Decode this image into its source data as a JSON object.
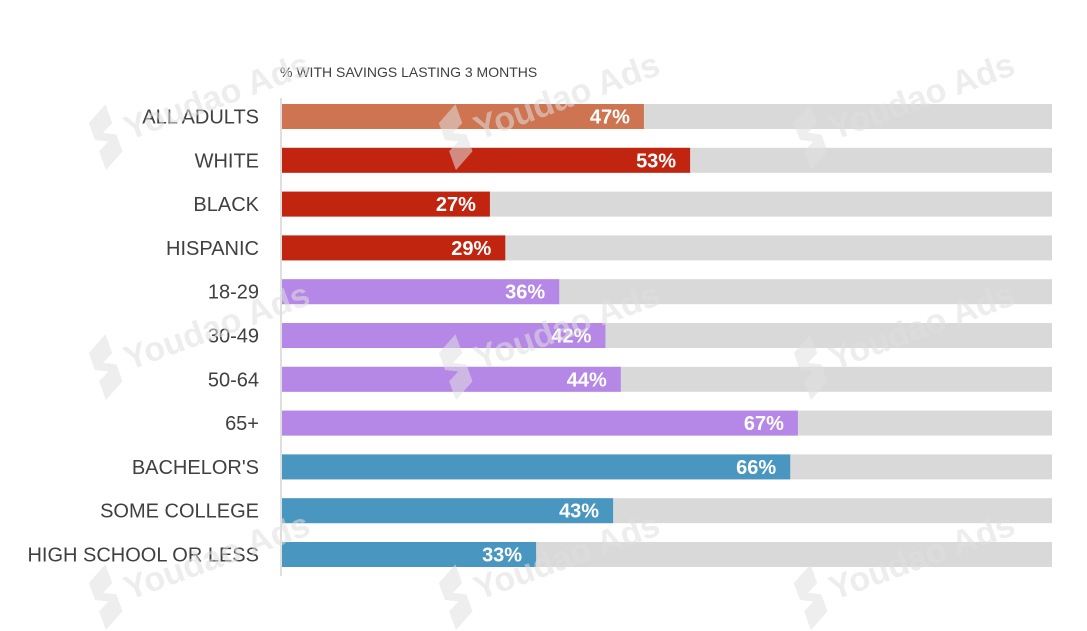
{
  "chart_data": {
    "type": "bar",
    "orientation": "horizontal",
    "title": "% WITH SAVINGS LASTING 3 MONTHS",
    "xlim": [
      0,
      100
    ],
    "value_suffix": "%",
    "categories": [
      "ALL ADULTS",
      "WHITE",
      "BLACK",
      "HISPANIC",
      "18-29",
      "30-49",
      "50-64",
      "65+",
      "BACHELOR'S",
      "SOME COLLEGE",
      "HIGH SCHOOL OR LESS"
    ],
    "values": [
      47,
      53,
      27,
      29,
      36,
      42,
      44,
      67,
      66,
      43,
      33
    ],
    "value_labels": [
      "47%",
      "53%",
      "27%",
      "29%",
      "36%",
      "42%",
      "44%",
      "67%",
      "66%",
      "43%",
      "33%"
    ],
    "groups": [
      "overall",
      "race",
      "race",
      "race",
      "age",
      "age",
      "age",
      "age",
      "education",
      "education",
      "education"
    ],
    "group_colors": {
      "overall": "#cf7450",
      "race": "#c1240f",
      "age": "#b587e6",
      "education": "#4996c0"
    },
    "track_color": "#d9d9d9",
    "grid": false,
    "legend": "none"
  },
  "watermark": {
    "text": "Youdao Ads"
  }
}
